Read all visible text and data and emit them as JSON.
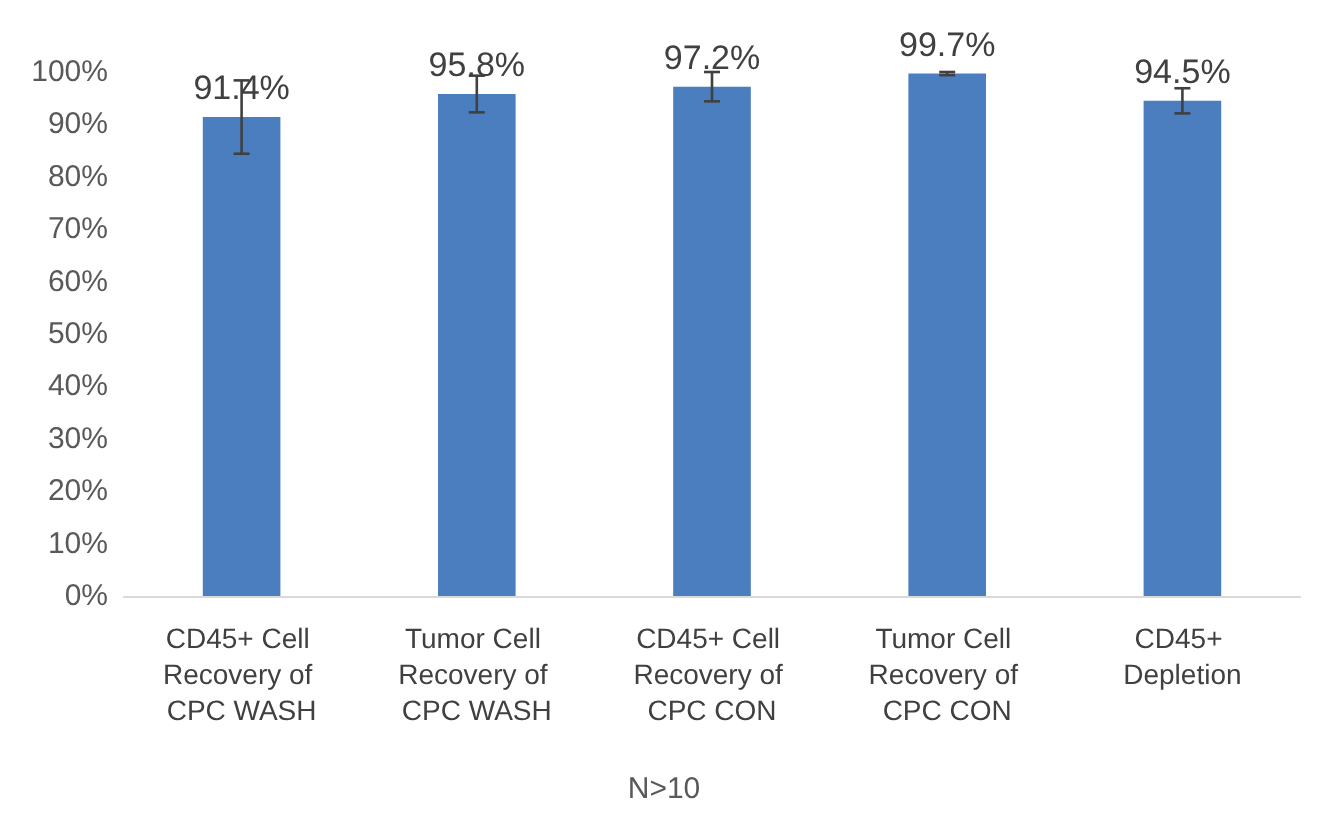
{
  "chart_data": {
    "type": "bar",
    "categories": [
      "CD45+ Cell Recovery of CPC WASH",
      "Tumor Cell Recovery of CPC WASH",
      "CD45+ Cell Recovery of CPC CON",
      "Tumor Cell Recovery of CPC CON",
      "CD45+ Depletion"
    ],
    "values": [
      91.4,
      95.8,
      97.2,
      99.7,
      94.5
    ],
    "errors": [
      7,
      3.5,
      2.8,
      0.3,
      2.4
    ],
    "value_labels": [
      "91.4%",
      "95.8%",
      "97.2%",
      "99.7%",
      "94.5%"
    ],
    "color": "#4a7ebf",
    "ylim": [
      0,
      100
    ],
    "yticks": [
      {
        "value": 0,
        "label": "0%"
      },
      {
        "value": 10,
        "label": "10%"
      },
      {
        "value": 20,
        "label": "20%"
      },
      {
        "value": 30,
        "label": "30%"
      },
      {
        "value": 40,
        "label": "40%"
      },
      {
        "value": 50,
        "label": "50%"
      },
      {
        "value": 60,
        "label": "60%"
      },
      {
        "value": 70,
        "label": "70%"
      },
      {
        "value": 80,
        "label": "80%"
      },
      {
        "value": 90,
        "label": "90%"
      },
      {
        "value": 100,
        "label": "100%"
      }
    ],
    "grid": false,
    "annotations": [
      "N>10"
    ]
  }
}
